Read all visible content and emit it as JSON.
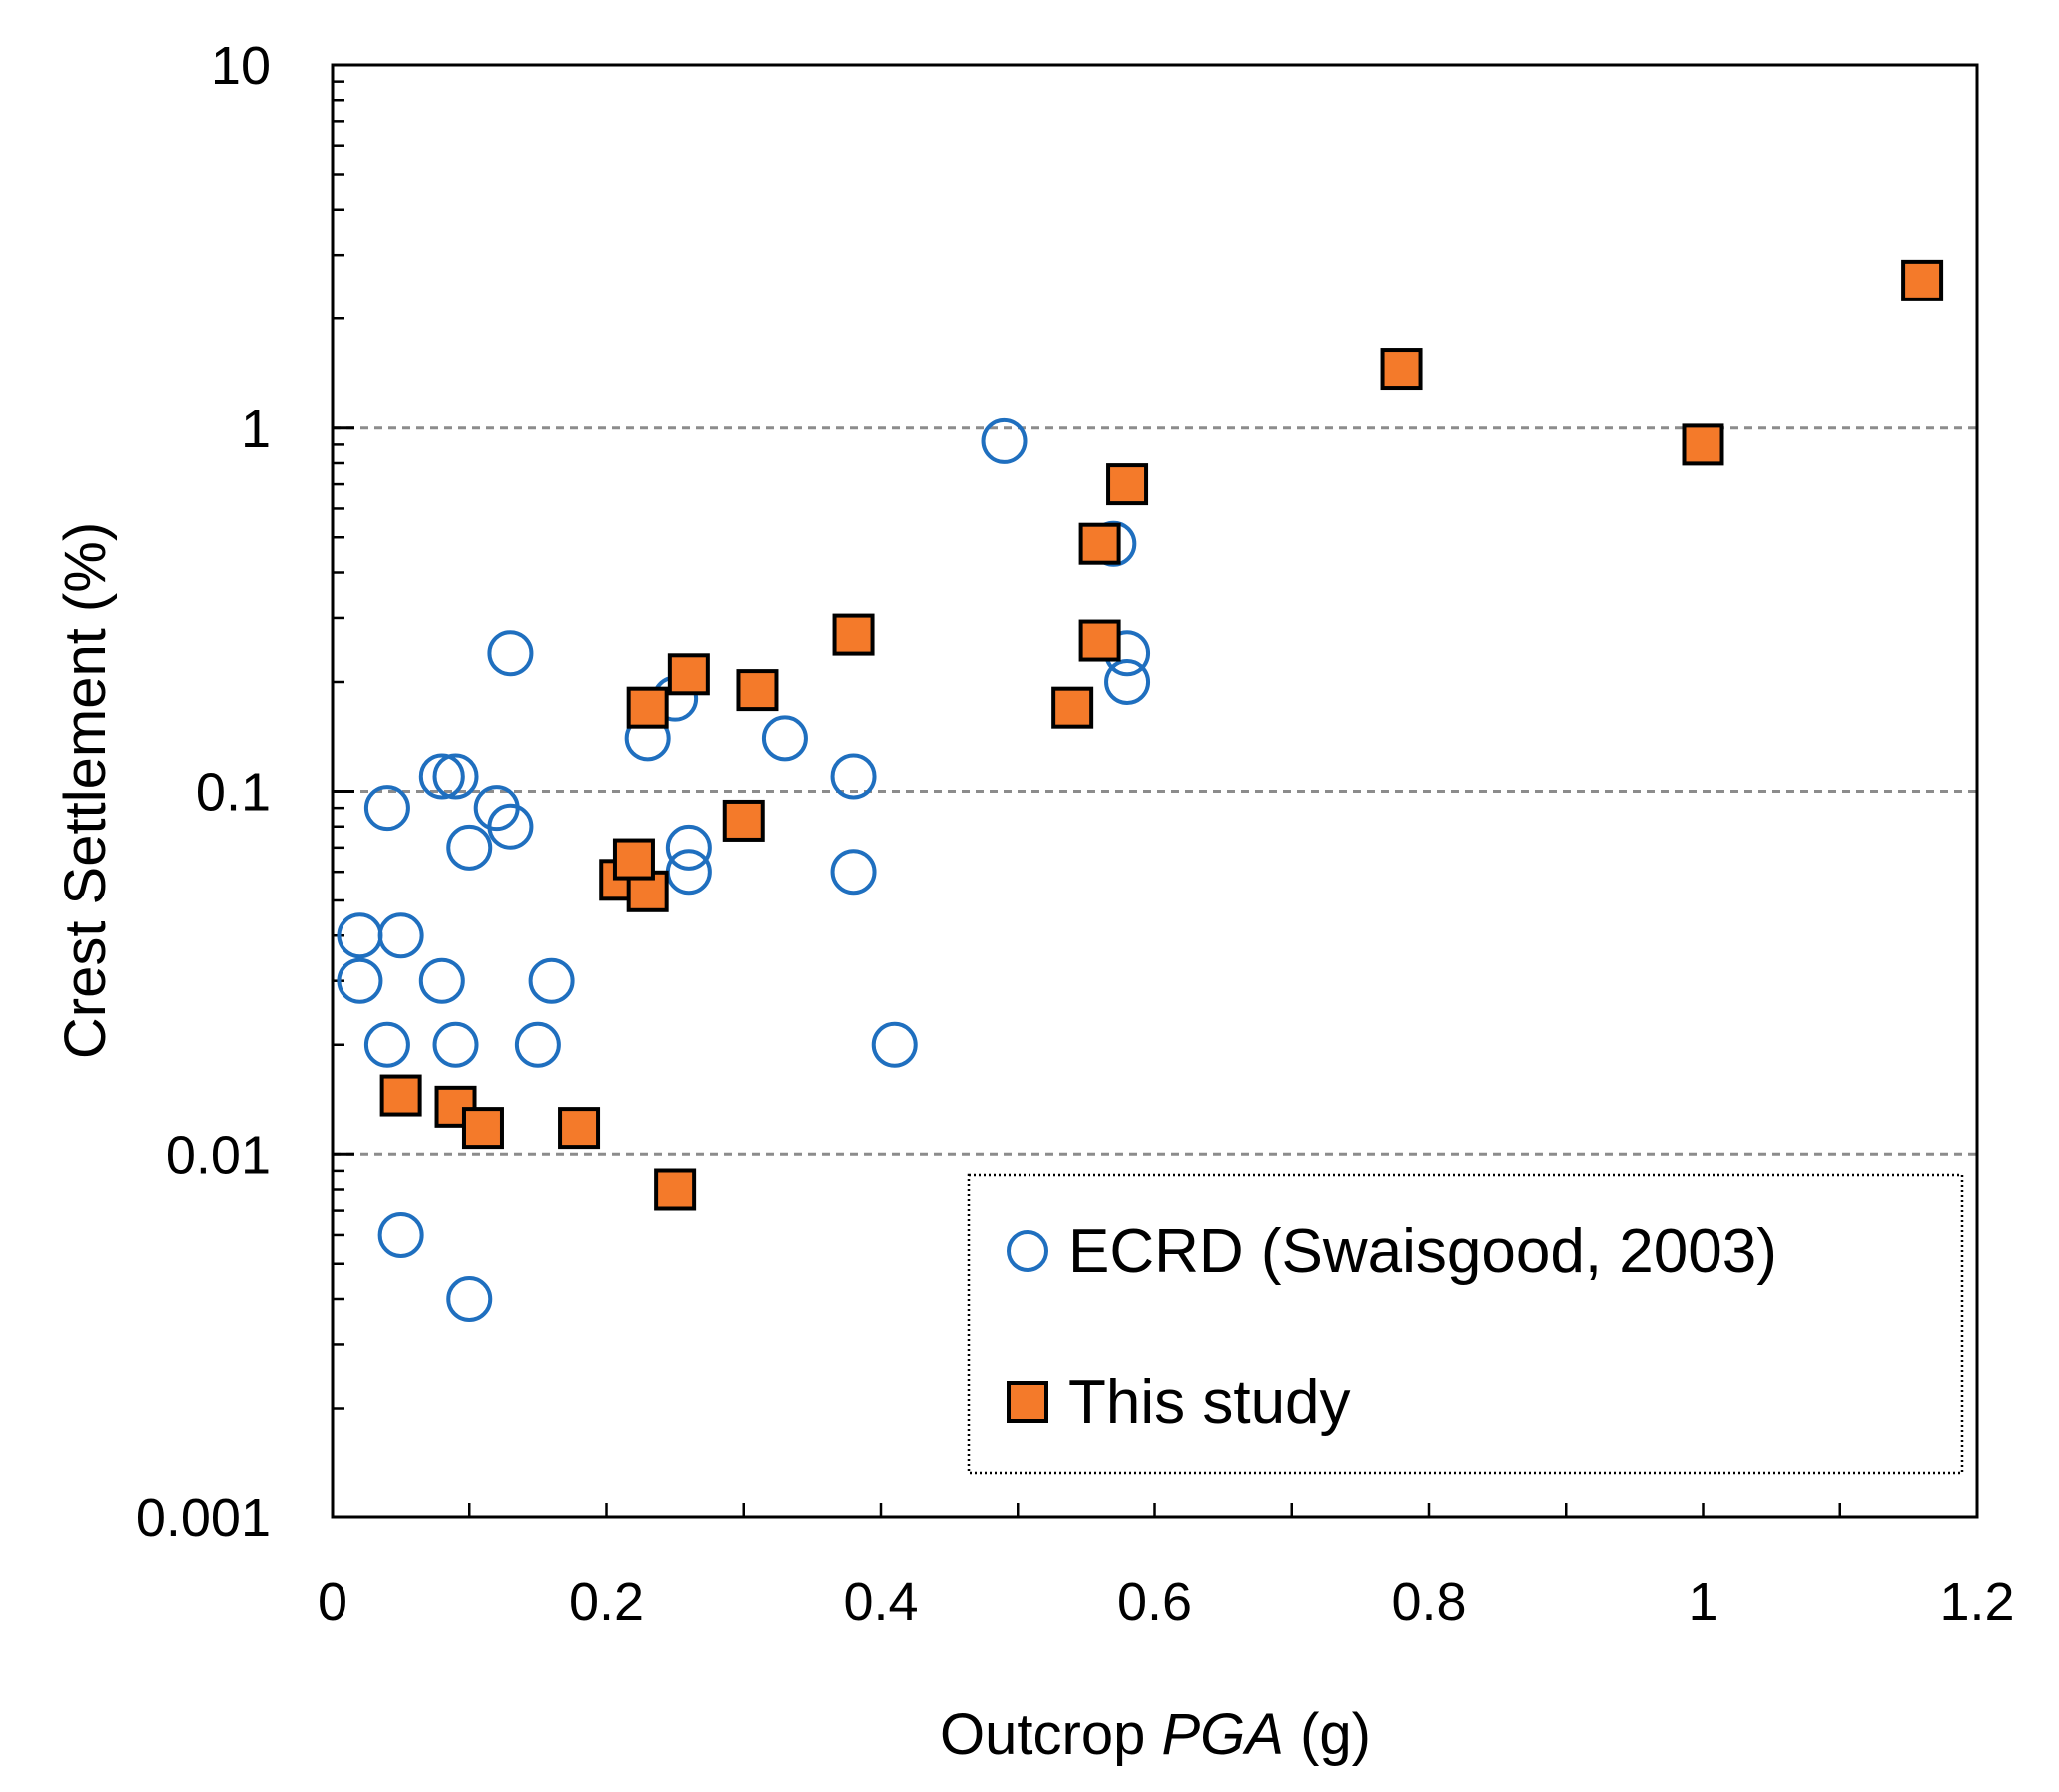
{
  "chart_data": {
    "type": "scatter",
    "xlabel_prefix": "Outcrop ",
    "xlabel_italic": "PGA",
    "xlabel_suffix": " (g)",
    "ylabel": "Crest Settlement (%)",
    "xlim": [
      0,
      1.2
    ],
    "ylim": [
      0.001,
      10
    ],
    "yscale": "log",
    "x_ticks": [
      0,
      0.2,
      0.4,
      0.6,
      0.8,
      1,
      1.2
    ],
    "x_tick_labels": [
      "0",
      "0.2",
      "0.4",
      "0.6",
      "0.8",
      "1",
      "1.2"
    ],
    "y_ticks": [
      0.001,
      0.01,
      0.1,
      1,
      10
    ],
    "y_tick_labels": [
      "0.001",
      "0.01",
      "0.1",
      "1",
      "10"
    ],
    "gridlines_y": [
      0.01,
      0.1,
      1
    ],
    "legend_position": "bottom-right",
    "series": [
      {
        "name": "ECRD (Swaisgood, 2003)",
        "marker": "circle-open",
        "color": "#1f6fbf",
        "points": [
          [
            0.02,
            0.04
          ],
          [
            0.02,
            0.03
          ],
          [
            0.04,
            0.09
          ],
          [
            0.05,
            0.04
          ],
          [
            0.04,
            0.02
          ],
          [
            0.05,
            0.006
          ],
          [
            0.08,
            0.11
          ],
          [
            0.09,
            0.11
          ],
          [
            0.08,
            0.03
          ],
          [
            0.09,
            0.02
          ],
          [
            0.1,
            0.07
          ],
          [
            0.1,
            0.004
          ],
          [
            0.12,
            0.09
          ],
          [
            0.13,
            0.08
          ],
          [
            0.13,
            0.24
          ],
          [
            0.15,
            0.02
          ],
          [
            0.16,
            0.03
          ],
          [
            0.23,
            0.14
          ],
          [
            0.25,
            0.18
          ],
          [
            0.26,
            0.07
          ],
          [
            0.26,
            0.06
          ],
          [
            0.33,
            0.14
          ],
          [
            0.38,
            0.11
          ],
          [
            0.38,
            0.06
          ],
          [
            0.41,
            0.02
          ],
          [
            0.49,
            0.92
          ],
          [
            0.57,
            0.48
          ],
          [
            0.58,
            0.24
          ],
          [
            0.58,
            0.2
          ]
        ]
      },
      {
        "name": "This study",
        "marker": "square-filled",
        "color": "#f47a2a",
        "points": [
          [
            0.05,
            0.0145
          ],
          [
            0.09,
            0.0135
          ],
          [
            0.11,
            0.0118
          ],
          [
            0.18,
            0.0118
          ],
          [
            0.25,
            0.008
          ],
          [
            0.21,
            0.057
          ],
          [
            0.23,
            0.053
          ],
          [
            0.22,
            0.065
          ],
          [
            0.23,
            0.17
          ],
          [
            0.26,
            0.21
          ],
          [
            0.3,
            0.083
          ],
          [
            0.31,
            0.19
          ],
          [
            0.38,
            0.27
          ],
          [
            0.54,
            0.17
          ],
          [
            0.56,
            0.26
          ],
          [
            0.56,
            0.48
          ],
          [
            0.58,
            0.7
          ],
          [
            0.78,
            1.45
          ],
          [
            1.0,
            0.9
          ],
          [
            1.16,
            2.55
          ]
        ]
      }
    ]
  }
}
